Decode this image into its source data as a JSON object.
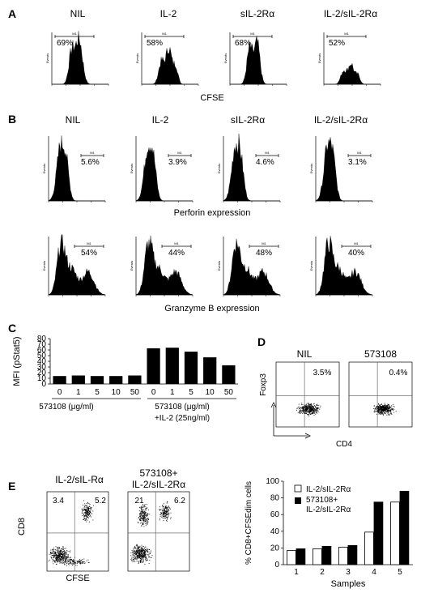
{
  "panels": {
    "A": {
      "letter": "A",
      "conditions": [
        "NIL",
        "IL-2",
        "sIL-2Rα",
        "IL-2/sIL-2Rα"
      ],
      "percents": [
        "69%",
        "58%",
        "68%",
        "52%"
      ],
      "marker": "M1",
      "y_axis_label": "Events",
      "x_label": "CFSE"
    },
    "B": {
      "letter": "B",
      "conditions": [
        "NIL",
        "IL-2",
        "sIL-2Rα",
        "IL-2/sIL-2Rα"
      ],
      "perforin_percents": [
        "5.6%",
        "3.9%",
        "4.6%",
        "3.1%"
      ],
      "granzyme_percents": [
        "54%",
        "44%",
        "48%",
        "40%"
      ],
      "marker": "M1",
      "y_axis_label": "Events",
      "perforin_label": "Perforin expression",
      "granzyme_label": "Granzyme B expression"
    },
    "C": {
      "letter": "C",
      "group1_label": "573108 (μg/ml)",
      "group2_label_line1": "573108 (μg/ml)",
      "group2_label_line2": "+IL-2 (25ng/ml)"
    },
    "D": {
      "letter": "D",
      "conditions": [
        "NIL",
        "573108"
      ],
      "percents": [
        "3.5%",
        "0.4%"
      ],
      "y_label": "Foxp3",
      "x_label": "CD4"
    },
    "E": {
      "letter": "E",
      "dot1_title": "IL-2/sIL-Rα",
      "dot2_title_line1": "573108+",
      "dot2_title_line2": "IL-2/sIL-2Rα",
      "dot1_quadrants": [
        "3.4",
        "5.2"
      ],
      "dot2_quadrants": [
        "21",
        "6.2"
      ],
      "y_label": "CD8",
      "x_label": "CFSE",
      "legend": [
        "IL-2/sIL-2Rα",
        "573108+",
        "IL-2/sIL-2Rα"
      ]
    }
  },
  "chart_data": [
    {
      "type": "bar",
      "panel": "C",
      "categories": [
        "0",
        "1",
        "5",
        "10",
        "50",
        "0",
        "1",
        "5",
        "10",
        "50"
      ],
      "values": [
        14,
        15,
        14,
        14,
        15,
        63,
        64,
        57,
        47,
        33
      ],
      "ylabel": "MFI (pStat5)",
      "ylim": [
        0,
        80
      ],
      "yticks": [
        "0",
        "10",
        "20",
        "30",
        "40",
        "50",
        "60",
        "70",
        "80"
      ],
      "grid": false
    },
    {
      "type": "bar",
      "panel": "E",
      "categories": [
        "1",
        "2",
        "3",
        "4",
        "5"
      ],
      "series": [
        {
          "name": "IL-2/sIL-2Rα",
          "values": [
            17,
            19,
            21,
            39,
            75
          ],
          "color": "#ffffff"
        },
        {
          "name": "573108+ IL-2/sIL-2Rα",
          "values": [
            19,
            22,
            23,
            75,
            88
          ],
          "color": "#000000"
        }
      ],
      "xlabel": "Samples",
      "ylabel": "% CD8+CFSEdim cells",
      "ylim": [
        0,
        100
      ],
      "yticks": [
        "0",
        "20",
        "40",
        "60",
        "80",
        "100"
      ],
      "legend_position": "top-right",
      "grid": false
    }
  ]
}
